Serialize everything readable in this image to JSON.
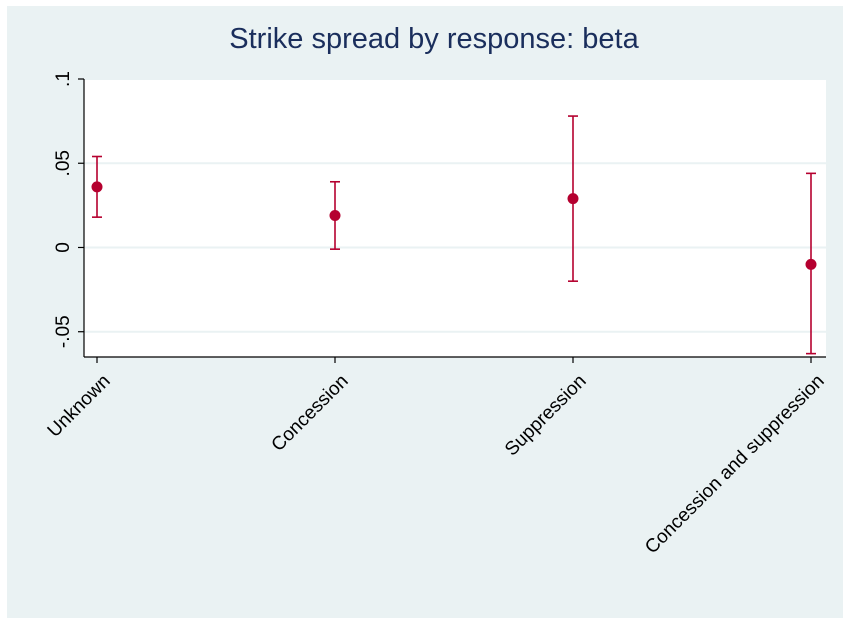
{
  "chart_data": {
    "type": "scatter",
    "title": "Strike spread by response: beta",
    "xlabel": "",
    "ylabel": "",
    "categories": [
      "Unknown",
      "Concession",
      "Suppression",
      "Concession and suppression"
    ],
    "series": [
      {
        "estimates": [
          0.036,
          0.019,
          0.029,
          -0.01
        ],
        "ci_low": [
          0.018,
          -0.001,
          -0.02,
          -0.063
        ],
        "ci_high": [
          0.054,
          0.039,
          0.078,
          0.044
        ]
      }
    ],
    "ylim": [
      -0.065,
      0.1
    ],
    "yticks": [
      -0.05,
      0,
      0.05,
      0.1
    ],
    "ytick_labels": [
      "-.05",
      "0",
      ".05",
      ".1"
    ],
    "grid": true,
    "colors": {
      "marker": "#b5002f",
      "title": "#1a2e5c",
      "background": "#eaf2f3",
      "plot_area": "#ffffff",
      "gridline": "#eaf2f3"
    }
  }
}
